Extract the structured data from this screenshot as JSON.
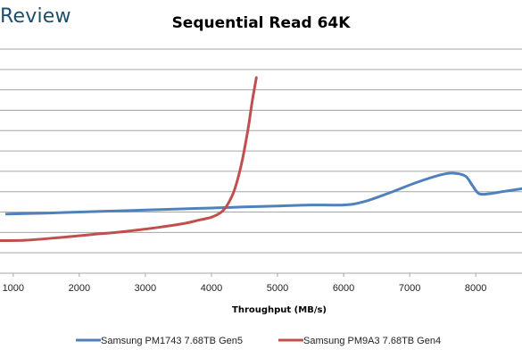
{
  "header": {
    "brand": "Review"
  },
  "chart_data": {
    "type": "line",
    "title": "Sequential Read 64K",
    "xlabel": "Throughput (MB/s)",
    "ylabel": "",
    "xlim": [
      800,
      8700
    ],
    "ylim": [
      0,
      11
    ],
    "x_ticks": [
      1000,
      2000,
      3000,
      4000,
      5000,
      6000,
      7000,
      8000
    ],
    "y_gridlines": [
      1,
      2,
      3,
      4,
      5,
      6,
      7,
      8,
      9,
      10,
      11
    ],
    "y_tick_labels_visible": false,
    "grid": true,
    "legend_position": "bottom",
    "series": [
      {
        "name": "Samsung PM1743 7.68TB Gen5",
        "color": "#4f81bd",
        "points": [
          [
            900,
            2.9
          ],
          [
            1500,
            2.95
          ],
          [
            2000,
            3.0
          ],
          [
            2500,
            3.05
          ],
          [
            3000,
            3.1
          ],
          [
            3500,
            3.15
          ],
          [
            4000,
            3.2
          ],
          [
            4500,
            3.25
          ],
          [
            5000,
            3.3
          ],
          [
            5500,
            3.35
          ],
          [
            6000,
            3.35
          ],
          [
            6300,
            3.5
          ],
          [
            6700,
            3.95
          ],
          [
            7100,
            4.45
          ],
          [
            7500,
            4.85
          ],
          [
            7700,
            4.9
          ],
          [
            7850,
            4.75
          ],
          [
            7950,
            4.3
          ],
          [
            8050,
            3.9
          ],
          [
            8200,
            3.9
          ],
          [
            8400,
            4.0
          ],
          [
            8700,
            4.15
          ]
        ]
      },
      {
        "name": "Samsung PM9A3 7.68TB Gen4",
        "color": "#c0504d",
        "points": [
          [
            800,
            1.6
          ],
          [
            1200,
            1.62
          ],
          [
            1700,
            1.75
          ],
          [
            2200,
            1.9
          ],
          [
            2700,
            2.05
          ],
          [
            3200,
            2.25
          ],
          [
            3600,
            2.45
          ],
          [
            3800,
            2.6
          ],
          [
            4000,
            2.75
          ],
          [
            4150,
            3.0
          ],
          [
            4250,
            3.4
          ],
          [
            4350,
            4.1
          ],
          [
            4450,
            5.3
          ],
          [
            4550,
            7.0
          ],
          [
            4620,
            8.5
          ],
          [
            4680,
            9.6
          ]
        ]
      }
    ]
  }
}
